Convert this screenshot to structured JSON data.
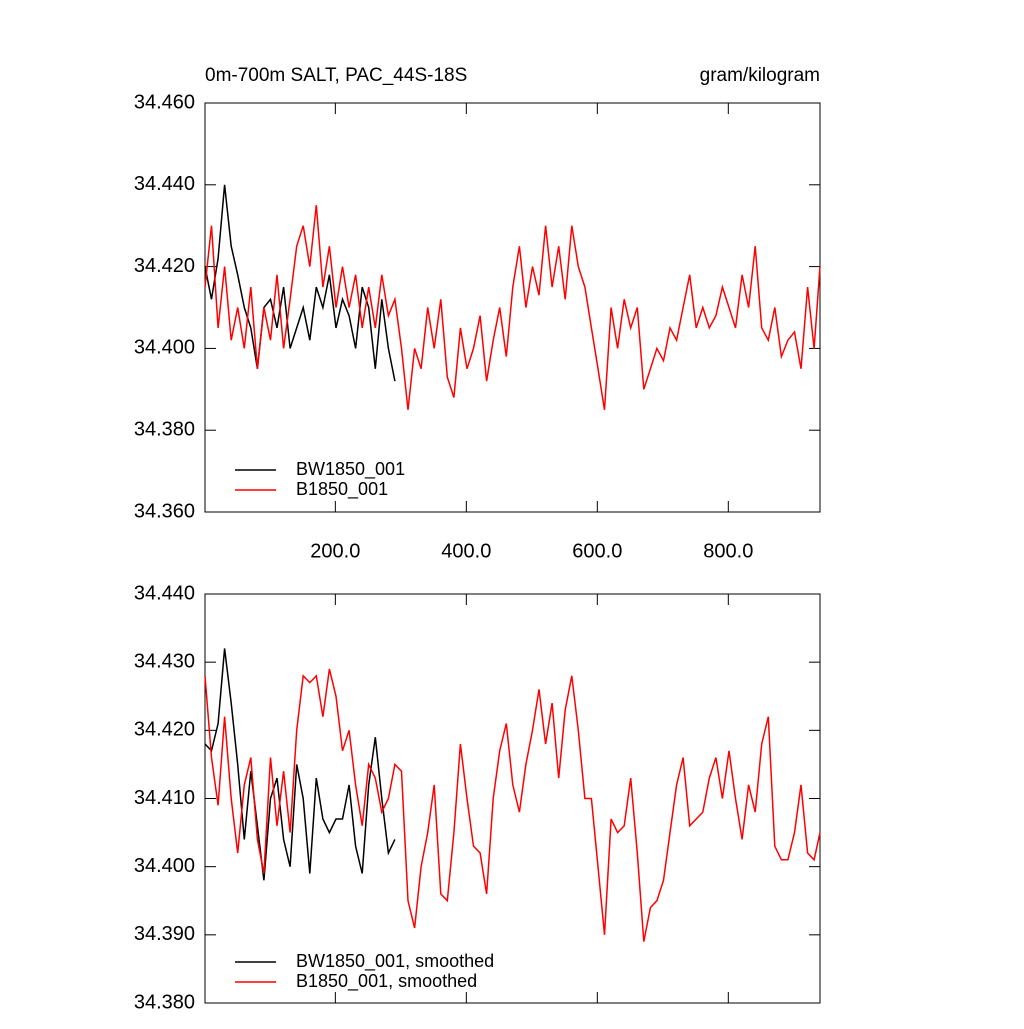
{
  "chart_data": [
    {
      "type": "line",
      "title": "0m-700m SALT, PAC_44S-18S",
      "units": "gram/kilogram",
      "xlim": [
        1,
        940
      ],
      "xticks": [
        {
          "value": 200,
          "label": "200.0"
        },
        {
          "value": 400,
          "label": "400.0"
        },
        {
          "value": 600,
          "label": "600.0"
        },
        {
          "value": 800,
          "label": "800.0"
        }
      ],
      "ylim": [
        34.36,
        34.46
      ],
      "yticks": [
        {
          "value": 34.36,
          "label": "34.360"
        },
        {
          "value": 34.38,
          "label": "34.380"
        },
        {
          "value": 34.4,
          "label": "34.400"
        },
        {
          "value": 34.42,
          "label": "34.420"
        },
        {
          "value": 34.44,
          "label": "34.440"
        },
        {
          "value": 34.46,
          "label": "34.460"
        }
      ],
      "series": [
        {
          "name": "BW1850_001",
          "color": "#000000",
          "x": [
            1,
            11,
            21,
            31,
            41,
            51,
            61,
            71,
            81,
            91,
            101,
            111,
            121,
            131,
            141,
            151,
            161,
            171,
            181,
            191,
            201,
            211,
            221,
            231,
            241,
            251,
            261,
            271,
            281,
            291
          ],
          "values": [
            34.42,
            34.412,
            34.422,
            34.44,
            34.425,
            34.418,
            34.41,
            34.405,
            34.395,
            34.41,
            34.412,
            34.405,
            34.415,
            34.4,
            34.405,
            34.41,
            34.402,
            34.415,
            34.41,
            34.418,
            34.405,
            34.412,
            34.408,
            34.4,
            34.415,
            34.41,
            34.395,
            34.412,
            34.4,
            34.392
          ]
        },
        {
          "name": "B1850_001",
          "color": "#ff0000",
          "x": [
            1,
            11,
            21,
            31,
            41,
            51,
            61,
            71,
            81,
            91,
            101,
            111,
            121,
            131,
            141,
            151,
            161,
            171,
            181,
            191,
            201,
            211,
            221,
            231,
            241,
            251,
            261,
            271,
            281,
            291,
            301,
            311,
            321,
            331,
            341,
            351,
            361,
            371,
            381,
            391,
            401,
            411,
            421,
            431,
            441,
            451,
            461,
            471,
            481,
            491,
            501,
            511,
            521,
            531,
            541,
            551,
            561,
            571,
            581,
            591,
            601,
            611,
            621,
            631,
            641,
            651,
            661,
            671,
            681,
            691,
            701,
            711,
            721,
            731,
            741,
            751,
            761,
            771,
            781,
            791,
            801,
            811,
            821,
            831,
            841,
            851,
            861,
            871,
            881,
            891,
            901,
            911,
            921,
            931,
            940
          ],
          "values": [
            34.415,
            34.43,
            34.405,
            34.42,
            34.402,
            34.41,
            34.4,
            34.415,
            34.395,
            34.41,
            34.402,
            34.418,
            34.4,
            34.412,
            34.425,
            34.43,
            34.42,
            34.435,
            34.415,
            34.425,
            34.41,
            34.42,
            34.41,
            34.418,
            34.405,
            34.415,
            34.405,
            34.418,
            34.408,
            34.412,
            34.4,
            34.385,
            34.4,
            34.395,
            34.41,
            34.4,
            34.412,
            34.393,
            34.388,
            34.405,
            34.395,
            34.4,
            34.408,
            34.392,
            34.402,
            34.41,
            34.398,
            34.415,
            34.425,
            34.41,
            34.42,
            34.413,
            34.43,
            34.415,
            34.425,
            34.412,
            34.43,
            34.42,
            34.415,
            34.405,
            34.395,
            34.385,
            34.41,
            34.4,
            34.412,
            34.405,
            34.41,
            34.39,
            34.395,
            34.4,
            34.397,
            34.405,
            34.402,
            34.41,
            34.418,
            34.405,
            34.41,
            34.405,
            34.408,
            34.415,
            34.41,
            34.405,
            34.418,
            34.41,
            34.425,
            34.405,
            34.402,
            34.41,
            34.398,
            34.402,
            34.404,
            34.395,
            34.415,
            34.4,
            34.42
          ]
        }
      ]
    },
    {
      "type": "line",
      "xlim": [
        1,
        940
      ],
      "xticks": [
        200,
        400,
        600,
        800
      ],
      "ylim": [
        34.38,
        34.44
      ],
      "yticks": [
        {
          "value": 34.38,
          "label": "34.380"
        },
        {
          "value": 34.39,
          "label": "34.390"
        },
        {
          "value": 34.4,
          "label": "34.400"
        },
        {
          "value": 34.41,
          "label": "34.410"
        },
        {
          "value": 34.42,
          "label": "34.420"
        },
        {
          "value": 34.43,
          "label": "34.430"
        },
        {
          "value": 34.44,
          "label": "34.440"
        }
      ],
      "series": [
        {
          "name": "BW1850_001, smoothed",
          "color": "#000000",
          "x": [
            1,
            11,
            21,
            31,
            41,
            51,
            61,
            71,
            81,
            91,
            101,
            111,
            121,
            131,
            141,
            151,
            161,
            171,
            181,
            191,
            201,
            211,
            221,
            231,
            241,
            251,
            261,
            271,
            281,
            291
          ],
          "values": [
            34.418,
            34.417,
            34.421,
            34.432,
            34.424,
            34.415,
            34.404,
            34.414,
            34.406,
            34.398,
            34.41,
            34.413,
            34.404,
            34.4,
            34.415,
            34.41,
            34.399,
            34.413,
            34.407,
            34.405,
            34.407,
            34.407,
            34.412,
            34.403,
            34.399,
            34.412,
            34.419,
            34.41,
            34.402,
            34.404
          ]
        },
        {
          "name": "B1850_001, smoothed",
          "color": "#ff0000",
          "x": [
            1,
            11,
            21,
            31,
            41,
            51,
            61,
            71,
            81,
            91,
            101,
            111,
            121,
            131,
            141,
            151,
            161,
            171,
            181,
            191,
            201,
            211,
            221,
            231,
            241,
            251,
            261,
            271,
            281,
            291,
            301,
            311,
            321,
            331,
            341,
            351,
            361,
            371,
            381,
            391,
            401,
            411,
            421,
            431,
            441,
            451,
            461,
            471,
            481,
            491,
            501,
            511,
            521,
            531,
            541,
            551,
            561,
            571,
            581,
            591,
            601,
            611,
            621,
            631,
            641,
            651,
            661,
            671,
            681,
            691,
            701,
            711,
            721,
            731,
            741,
            751,
            761,
            771,
            781,
            791,
            801,
            811,
            821,
            831,
            841,
            851,
            861,
            871,
            881,
            891,
            901,
            911,
            921,
            931,
            940
          ],
          "values": [
            34.428,
            34.416,
            34.409,
            34.422,
            34.41,
            34.402,
            34.412,
            34.416,
            34.404,
            34.399,
            34.416,
            34.406,
            34.414,
            34.405,
            34.42,
            34.428,
            34.427,
            34.428,
            34.422,
            34.429,
            34.425,
            34.417,
            34.42,
            34.412,
            34.406,
            34.415,
            34.413,
            34.408,
            34.41,
            34.415,
            34.414,
            34.395,
            34.391,
            34.4,
            34.405,
            34.412,
            34.396,
            34.395,
            34.405,
            34.418,
            34.41,
            34.403,
            34.402,
            34.396,
            34.41,
            34.417,
            34.421,
            34.412,
            34.408,
            34.415,
            34.42,
            34.426,
            34.418,
            34.424,
            34.413,
            34.423,
            34.428,
            34.42,
            34.41,
            34.41,
            34.4,
            34.39,
            34.407,
            34.405,
            34.406,
            34.413,
            34.402,
            34.389,
            34.394,
            34.395,
            34.398,
            34.405,
            34.412,
            34.416,
            34.406,
            34.407,
            34.408,
            34.413,
            34.416,
            34.41,
            34.417,
            34.41,
            34.404,
            34.412,
            34.408,
            34.418,
            34.422,
            34.403,
            34.401,
            34.401,
            34.405,
            34.412,
            34.402,
            34.401,
            34.405
          ]
        }
      ]
    }
  ]
}
